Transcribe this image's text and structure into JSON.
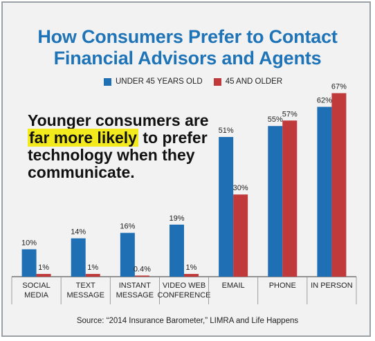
{
  "title": {
    "line1": "How Consumers Prefer to Contact",
    "line2": "Financial Advisors and Agents"
  },
  "callout": {
    "before": "Younger consumers are",
    "highlight": "far more likely",
    "after1": " to prefer",
    "line3": "technology when they",
    "line4": "communicate."
  },
  "source": "Source: “2014 Insurance Barometer,” LIMRA and Life Happens",
  "colors": {
    "under45": "#1f6fb5",
    "over45": "#c0393b",
    "title": "#1f74b8",
    "highlight": "#f3ea1e"
  },
  "chart_data": {
    "type": "bar",
    "title": "How Consumers Prefer to Contact Financial Advisors and Agents",
    "categories": [
      [
        "SOCIAL",
        "MEDIA"
      ],
      [
        "TEXT",
        "MESSAGE"
      ],
      [
        "INSTANT",
        "MESSAGE"
      ],
      [
        "VIDEO WEB",
        "CONFERENCE"
      ],
      [
        "EMAIL"
      ],
      [
        "PHONE"
      ],
      [
        "IN PERSON"
      ]
    ],
    "series": [
      {
        "name": "UNDER 45 YEARS OLD",
        "values": [
          10,
          14,
          16,
          19,
          51,
          55,
          62
        ],
        "labels": [
          "10%",
          "14%",
          "16%",
          "19%",
          "51%",
          "55%",
          "62%"
        ]
      },
      {
        "name": "45 AND OLDER",
        "values": [
          1,
          1,
          0.4,
          1,
          30,
          57,
          67
        ],
        "labels": [
          "1%",
          "1%",
          "0.4%",
          "1%",
          "30%",
          "57%",
          "67%"
        ]
      }
    ],
    "ylim": [
      0,
      70
    ],
    "grid": false,
    "legend": "top"
  }
}
